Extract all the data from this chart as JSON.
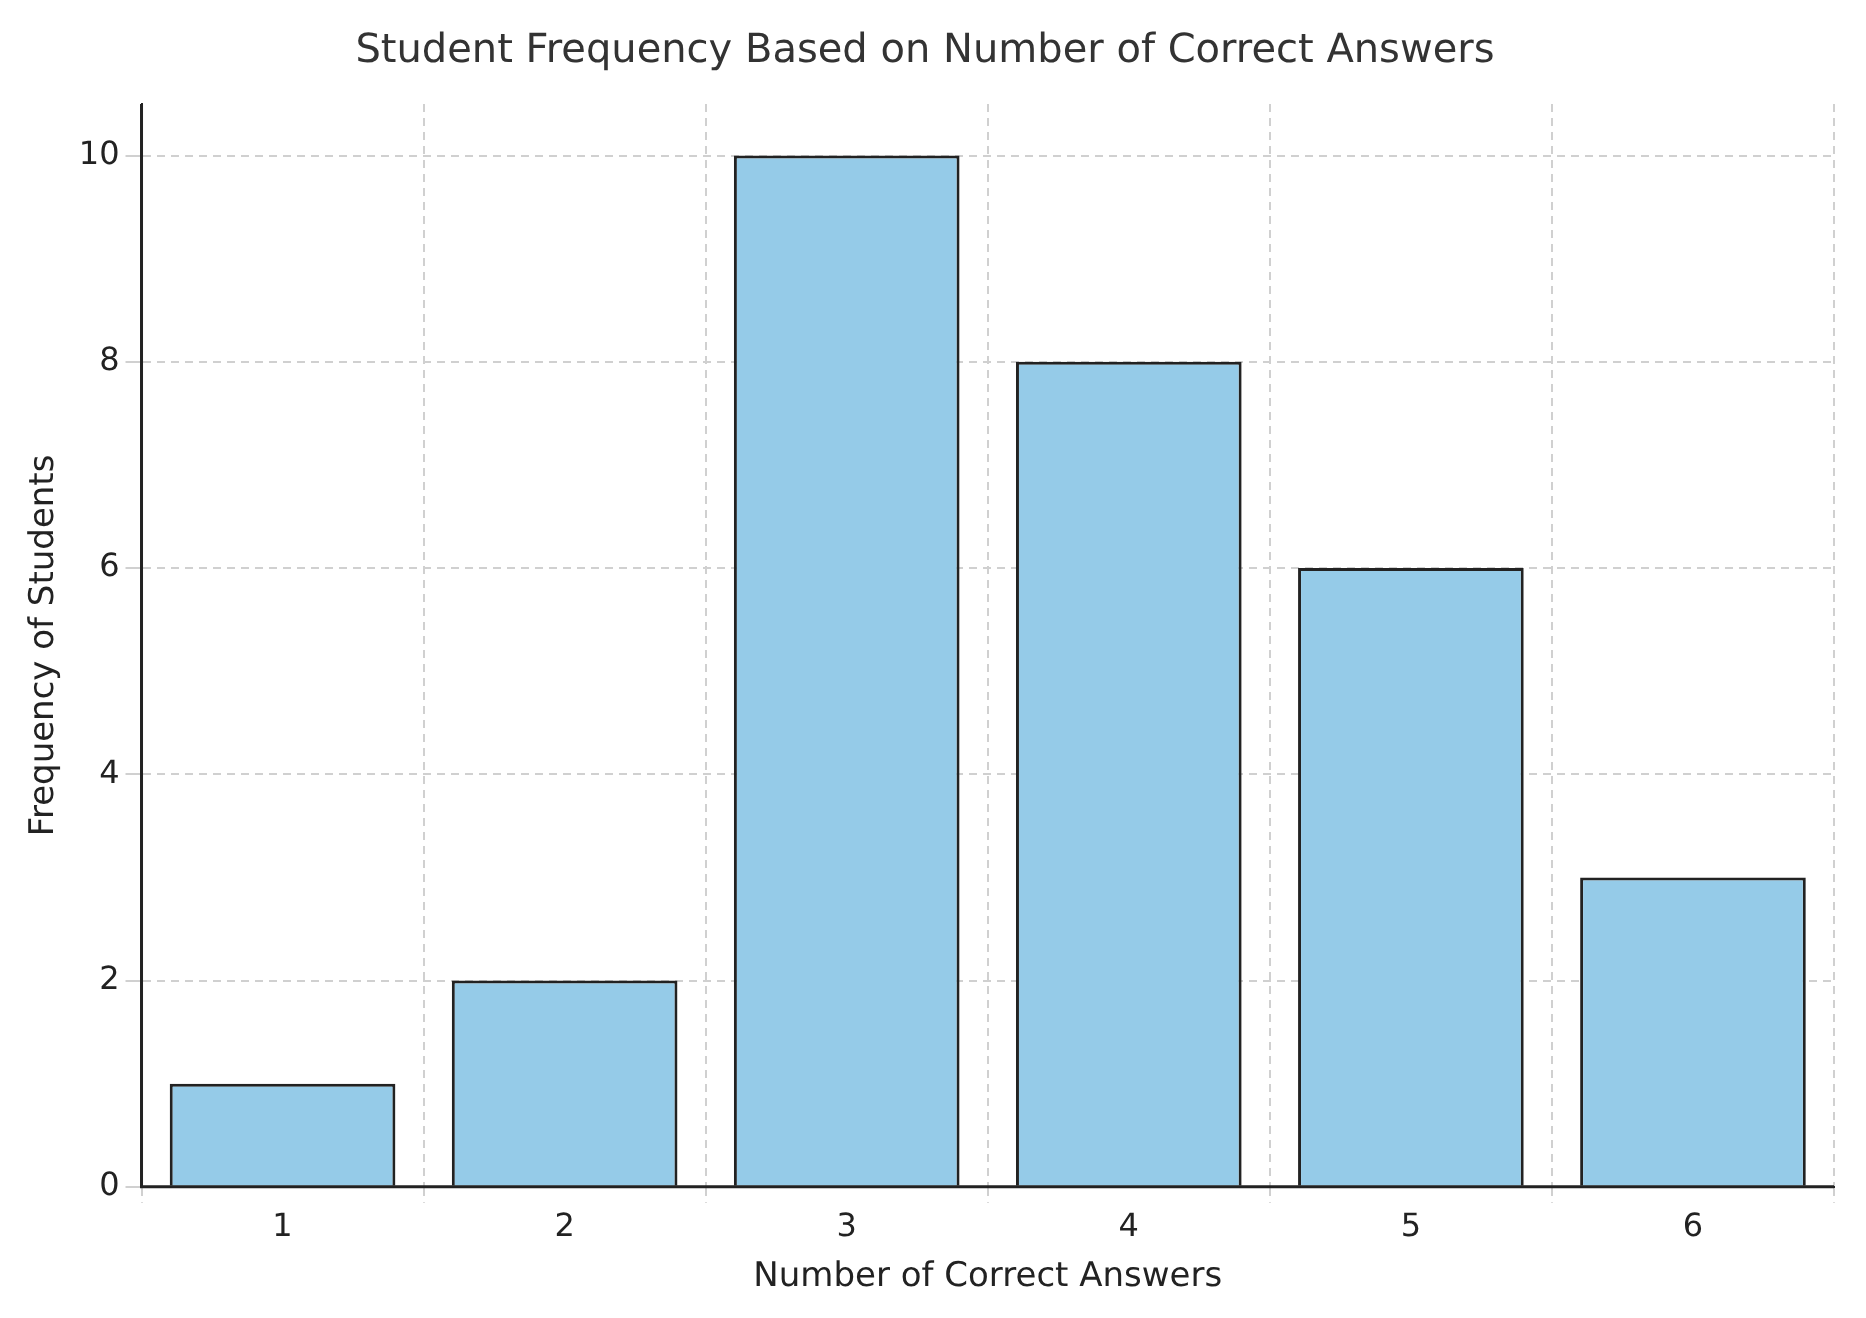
{
  "chart_data": {
    "type": "bar",
    "title": "Student Frequency Based on Number of Correct Answers",
    "xlabel": "Number of Correct Answers",
    "ylabel": "Frequency of Students",
    "categories": [
      "1",
      "2",
      "3",
      "4",
      "5",
      "6"
    ],
    "values": [
      1,
      2,
      10,
      8,
      6,
      3
    ],
    "color": "#95cbe8",
    "ylim": [
      0,
      10.5
    ],
    "yticks": [
      0,
      2,
      4,
      6,
      8,
      10
    ],
    "grid": true
  }
}
